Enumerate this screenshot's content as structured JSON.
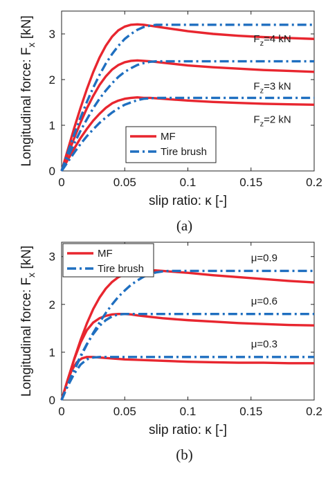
{
  "colors": {
    "mf": "#e8262f",
    "brush": "#1f6fc0",
    "axis": "#222222"
  },
  "chart_data": [
    {
      "type": "line",
      "panel_label": "(a)",
      "xlabel": "slip ratio: κ [-]",
      "ylabel": "Longitudinal force: F",
      "ylabel_sub": "x",
      "ylabel_unit": " [kN]",
      "xlim": [
        0,
        0.2
      ],
      "ylim": [
        0,
        3.5
      ],
      "xticks": [
        0,
        0.05,
        0.1,
        0.15,
        0.2
      ],
      "xtick_labels": [
        "0",
        "0.05",
        "0.1",
        "0.15",
        "0.2"
      ],
      "yticks": [
        0,
        1,
        2,
        3
      ],
      "ytick_labels": [
        "0",
        "1",
        "2",
        "3"
      ],
      "grid": false,
      "legend": {
        "placement": "center-right",
        "entries": [
          "MF",
          "Tire brush"
        ]
      },
      "annotations": [
        {
          "text": "F",
          "sub": "z",
          "rest": "=4 kN",
          "x": 0.152,
          "y": 2.82
        },
        {
          "text": "F",
          "sub": "z",
          "rest": "=3 kN",
          "x": 0.152,
          "y": 1.78
        },
        {
          "text": "F",
          "sub": "z",
          "rest": "=2 kN",
          "x": 0.152,
          "y": 1.05
        }
      ],
      "series": [
        {
          "name": "MF",
          "style": "solid",
          "x": [
            0,
            0.005,
            0.01,
            0.015,
            0.02,
            0.025,
            0.03,
            0.035,
            0.04,
            0.045,
            0.05,
            0.055,
            0.06,
            0.065,
            0.07,
            0.08,
            0.09,
            0.1,
            0.12,
            0.14,
            0.16,
            0.18,
            0.2
          ],
          "y": [
            0,
            0.47,
            0.94,
            1.38,
            1.79,
            2.16,
            2.48,
            2.74,
            2.94,
            3.08,
            3.16,
            3.2,
            3.21,
            3.2,
            3.18,
            3.14,
            3.1,
            3.06,
            3.0,
            2.96,
            2.93,
            2.91,
            2.89
          ]
        },
        {
          "name": "MF",
          "style": "solid",
          "x": [
            0,
            0.005,
            0.01,
            0.015,
            0.02,
            0.025,
            0.03,
            0.035,
            0.04,
            0.045,
            0.05,
            0.055,
            0.06,
            0.065,
            0.07,
            0.08,
            0.09,
            0.1,
            0.12,
            0.14,
            0.16,
            0.18,
            0.2
          ],
          "y": [
            0,
            0.36,
            0.72,
            1.06,
            1.37,
            1.64,
            1.88,
            2.07,
            2.22,
            2.32,
            2.38,
            2.41,
            2.42,
            2.41,
            2.4,
            2.37,
            2.34,
            2.31,
            2.27,
            2.24,
            2.21,
            2.19,
            2.17
          ]
        },
        {
          "name": "MF",
          "style": "solid",
          "x": [
            0,
            0.005,
            0.01,
            0.015,
            0.02,
            0.025,
            0.03,
            0.035,
            0.04,
            0.045,
            0.05,
            0.055,
            0.06,
            0.065,
            0.07,
            0.08,
            0.09,
            0.1,
            0.12,
            0.14,
            0.16,
            0.18,
            0.2
          ],
          "y": [
            0,
            0.25,
            0.49,
            0.72,
            0.92,
            1.1,
            1.25,
            1.38,
            1.48,
            1.54,
            1.58,
            1.6,
            1.61,
            1.6,
            1.6,
            1.58,
            1.56,
            1.54,
            1.51,
            1.49,
            1.47,
            1.46,
            1.45
          ]
        },
        {
          "name": "Tire brush",
          "style": "dashdot",
          "x": [
            0,
            0.005,
            0.01,
            0.015,
            0.02,
            0.025,
            0.03,
            0.035,
            0.04,
            0.045,
            0.05,
            0.055,
            0.06,
            0.065,
            0.07,
            0.075,
            0.08,
            0.1,
            0.12,
            0.14,
            0.16,
            0.18,
            0.2
          ],
          "y": [
            0,
            0.41,
            0.8,
            1.17,
            1.51,
            1.82,
            2.1,
            2.35,
            2.56,
            2.74,
            2.89,
            3.0,
            3.09,
            3.15,
            3.18,
            3.2,
            3.2,
            3.2,
            3.2,
            3.2,
            3.2,
            3.2,
            3.2
          ]
        },
        {
          "name": "Tire brush",
          "style": "dashdot",
          "x": [
            0,
            0.005,
            0.01,
            0.015,
            0.02,
            0.025,
            0.03,
            0.035,
            0.04,
            0.045,
            0.05,
            0.055,
            0.06,
            0.065,
            0.07,
            0.075,
            0.08,
            0.1,
            0.12,
            0.14,
            0.16,
            0.18,
            0.2
          ],
          "y": [
            0,
            0.31,
            0.6,
            0.88,
            1.13,
            1.37,
            1.58,
            1.76,
            1.92,
            2.06,
            2.17,
            2.25,
            2.32,
            2.36,
            2.39,
            2.4,
            2.4,
            2.4,
            2.4,
            2.4,
            2.4,
            2.4,
            2.4
          ]
        },
        {
          "name": "Tire brush",
          "style": "dashdot",
          "x": [
            0,
            0.005,
            0.01,
            0.015,
            0.02,
            0.025,
            0.03,
            0.035,
            0.04,
            0.045,
            0.05,
            0.055,
            0.06,
            0.065,
            0.07,
            0.075,
            0.08,
            0.1,
            0.12,
            0.14,
            0.16,
            0.18,
            0.2
          ],
          "y": [
            0,
            0.2,
            0.4,
            0.59,
            0.76,
            0.91,
            1.05,
            1.17,
            1.28,
            1.37,
            1.45,
            1.5,
            1.55,
            1.58,
            1.59,
            1.6,
            1.6,
            1.6,
            1.6,
            1.6,
            1.6,
            1.6,
            1.6
          ]
        }
      ]
    },
    {
      "type": "line",
      "panel_label": "(b)",
      "xlabel": "slip ratio: κ [-]",
      "ylabel": "Longitudinal force: F",
      "ylabel_sub": "x",
      "ylabel_unit": " [kN]",
      "xlim": [
        0,
        0.2
      ],
      "ylim": [
        0,
        3.3
      ],
      "xticks": [
        0,
        0.05,
        0.1,
        0.15,
        0.2
      ],
      "xtick_labels": [
        "0",
        "0.05",
        "0.1",
        "0.15",
        "0.2"
      ],
      "yticks": [
        0,
        1,
        2,
        3
      ],
      "ytick_labels": [
        "0",
        "1",
        "2",
        "3"
      ],
      "grid": false,
      "legend": {
        "placement": "top-left",
        "entries": [
          "MF",
          "Tire brush"
        ]
      },
      "annotations": [
        {
          "text": "μ=0.9",
          "x": 0.15,
          "y": 2.9
        },
        {
          "text": "μ=0.6",
          "x": 0.15,
          "y": 2.0
        },
        {
          "text": "μ=0.3",
          "x": 0.15,
          "y": 1.1
        }
      ],
      "series": [
        {
          "name": "MF",
          "style": "solid",
          "x": [
            0,
            0.005,
            0.01,
            0.015,
            0.02,
            0.025,
            0.03,
            0.035,
            0.04,
            0.045,
            0.05,
            0.055,
            0.06,
            0.065,
            0.07,
            0.075,
            0.08,
            0.085,
            0.09,
            0.1,
            0.12,
            0.14,
            0.16,
            0.18,
            0.2
          ],
          "y": [
            0,
            0.43,
            0.86,
            1.25,
            1.6,
            1.9,
            2.14,
            2.33,
            2.47,
            2.57,
            2.63,
            2.67,
            2.69,
            2.7,
            2.71,
            2.71,
            2.7,
            2.69,
            2.68,
            2.66,
            2.61,
            2.57,
            2.53,
            2.49,
            2.46
          ]
        },
        {
          "name": "MF",
          "style": "solid",
          "x": [
            0,
            0.005,
            0.01,
            0.015,
            0.02,
            0.025,
            0.03,
            0.035,
            0.04,
            0.045,
            0.05,
            0.055,
            0.06,
            0.07,
            0.08,
            0.1,
            0.12,
            0.14,
            0.16,
            0.18,
            0.2
          ],
          "y": [
            0,
            0.44,
            0.85,
            1.2,
            1.46,
            1.62,
            1.71,
            1.76,
            1.79,
            1.8,
            1.8,
            1.79,
            1.77,
            1.74,
            1.71,
            1.67,
            1.64,
            1.61,
            1.59,
            1.57,
            1.56
          ]
        },
        {
          "name": "MF",
          "style": "solid",
          "x": [
            0,
            0.004,
            0.008,
            0.012,
            0.016,
            0.02,
            0.025,
            0.03,
            0.04,
            0.05,
            0.06,
            0.08,
            0.1,
            0.12,
            0.14,
            0.16,
            0.18,
            0.2
          ],
          "y": [
            0,
            0.35,
            0.62,
            0.79,
            0.87,
            0.9,
            0.9,
            0.89,
            0.87,
            0.85,
            0.84,
            0.82,
            0.8,
            0.79,
            0.78,
            0.78,
            0.77,
            0.77
          ]
        },
        {
          "name": "Tire brush",
          "style": "dashdot",
          "x": [
            0,
            0.005,
            0.01,
            0.015,
            0.02,
            0.025,
            0.03,
            0.035,
            0.04,
            0.045,
            0.05,
            0.055,
            0.06,
            0.065,
            0.07,
            0.075,
            0.08,
            0.085,
            0.09,
            0.1,
            0.12,
            0.14,
            0.16,
            0.18,
            0.2
          ],
          "y": [
            0,
            0.32,
            0.62,
            0.9,
            1.16,
            1.4,
            1.62,
            1.82,
            2.0,
            2.16,
            2.29,
            2.41,
            2.5,
            2.58,
            2.63,
            2.67,
            2.69,
            2.7,
            2.7,
            2.7,
            2.7,
            2.7,
            2.7,
            2.7,
            2.7
          ]
        },
        {
          "name": "Tire brush",
          "style": "dashdot",
          "x": [
            0,
            0.005,
            0.01,
            0.015,
            0.02,
            0.025,
            0.03,
            0.035,
            0.04,
            0.045,
            0.05,
            0.055,
            0.06,
            0.07,
            0.08,
            0.1,
            0.12,
            0.14,
            0.16,
            0.18,
            0.2
          ],
          "y": [
            0,
            0.33,
            0.64,
            0.92,
            1.17,
            1.38,
            1.55,
            1.67,
            1.75,
            1.79,
            1.8,
            1.8,
            1.8,
            1.8,
            1.8,
            1.8,
            1.8,
            1.8,
            1.8,
            1.8,
            1.8
          ]
        },
        {
          "name": "Tire brush",
          "style": "dashdot",
          "x": [
            0,
            0.005,
            0.01,
            0.015,
            0.02,
            0.025,
            0.03,
            0.04,
            0.05,
            0.06,
            0.08,
            0.1,
            0.12,
            0.14,
            0.16,
            0.18,
            0.2
          ],
          "y": [
            0,
            0.3,
            0.55,
            0.74,
            0.85,
            0.89,
            0.9,
            0.9,
            0.9,
            0.9,
            0.9,
            0.9,
            0.9,
            0.9,
            0.9,
            0.9,
            0.9
          ]
        }
      ]
    }
  ]
}
